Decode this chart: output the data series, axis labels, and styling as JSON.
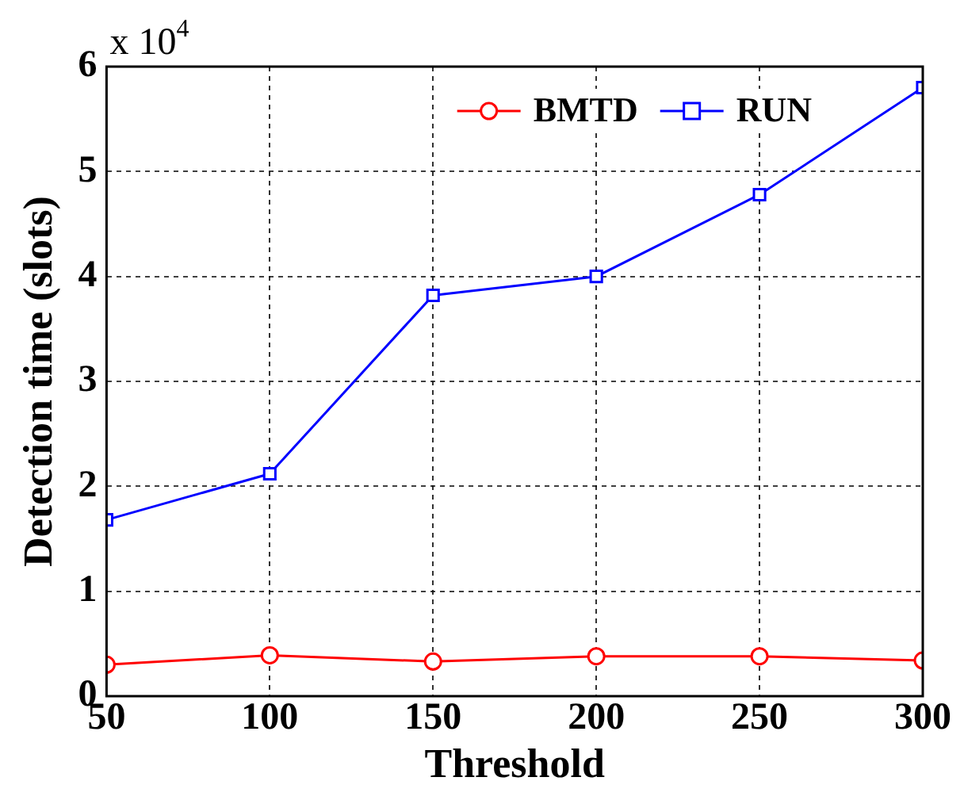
{
  "chart_data": {
    "type": "line",
    "xlabel": "Threshold",
    "ylabel": "Detection time (slots)",
    "x": [
      50,
      100,
      150,
      200,
      250,
      300
    ],
    "series": [
      {
        "name": "BMTD",
        "color": "#ff0000",
        "marker": "circle",
        "values": [
          0.3,
          0.39,
          0.33,
          0.38,
          0.38,
          0.34
        ]
      },
      {
        "name": "RUN",
        "color": "#0000ff",
        "marker": "square",
        "values": [
          1.68,
          2.12,
          3.82,
          4.0,
          4.78,
          5.8
        ]
      }
    ],
    "xlim": [
      50,
      300
    ],
    "xticks": [
      50,
      100,
      150,
      200,
      250,
      300
    ],
    "ylim": [
      0,
      6
    ],
    "yticks": [
      0,
      1,
      2,
      3,
      4,
      5,
      6
    ],
    "annotations": [
      "x 10$^{4}$"
    ],
    "grid": true,
    "legend": "top right",
    "line_style": "solid"
  }
}
